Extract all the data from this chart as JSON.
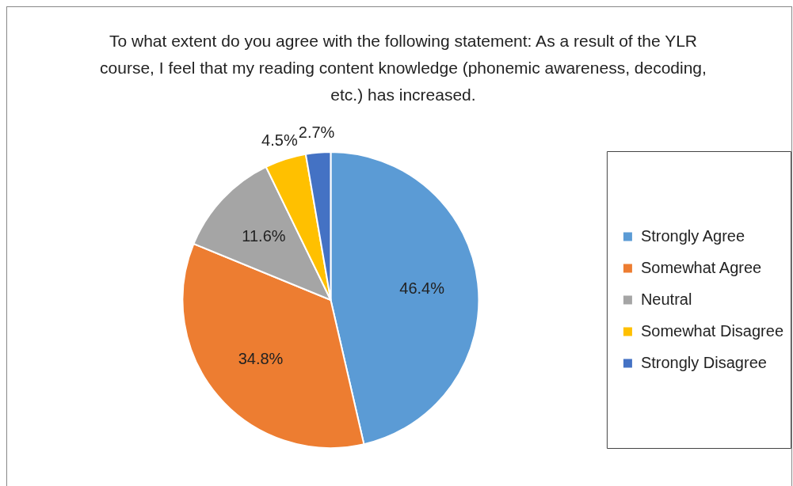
{
  "chart_data": {
    "type": "pie",
    "title": "To what extent do you agree with the following statement:  As a result of the YLR course, I feel that my reading content knowledge (phonemic awareness, decoding, etc.) has increased.",
    "categories": [
      "Strongly Agree",
      "Somewhat Agree",
      "Neutral",
      "Somewhat Disagree",
      "Strongly Disagree"
    ],
    "values": [
      46.4,
      34.8,
      11.6,
      4.5,
      2.7
    ],
    "value_labels": [
      "46.4%",
      "34.8%",
      "11.6%",
      "4.5%",
      "2.7%"
    ],
    "colors": [
      "#5b9bd5",
      "#ed7d31",
      "#a5a5a5",
      "#ffc000",
      "#4472c4"
    ],
    "legend": "right"
  }
}
